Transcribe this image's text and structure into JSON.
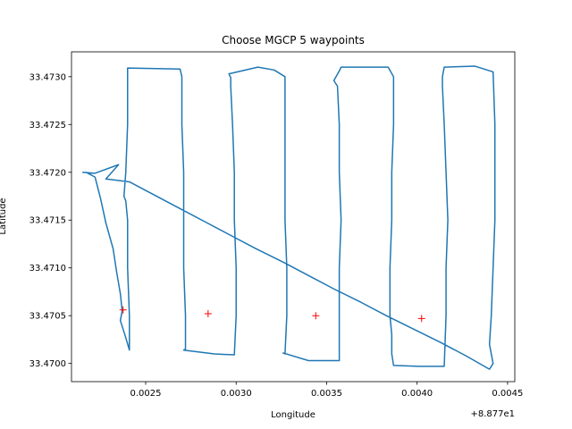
{
  "chart_data": {
    "type": "line",
    "title": "Choose MGCP 5 waypoints",
    "xlabel": "Longitude",
    "ylabel": "Latitude",
    "x_offset_label": "+8.877e1",
    "xlim": [
      0.00209,
      0.00454
    ],
    "ylim": [
      33.46981,
      33.47326
    ],
    "x_ticks": [
      0.0025,
      0.003,
      0.0035,
      0.004,
      0.0045
    ],
    "x_tick_labels": [
      "0.0025",
      "0.0030",
      "0.0035",
      "0.0040",
      "0.0045"
    ],
    "y_ticks": [
      33.47,
      33.4705,
      33.471,
      33.4715,
      33.472,
      33.4725,
      33.473
    ],
    "y_tick_labels": [
      "33.4700",
      "33.4705",
      "33.4710",
      "33.4715",
      "33.4720",
      "33.4725",
      "33.4730"
    ],
    "grid": false,
    "colors": {
      "path": "#1f77b4",
      "waypoints": "#ff0000"
    },
    "series": [
      {
        "kind": "path",
        "x": [
          0.00217,
          0.00222,
          0.00225,
          0.00228,
          0.00232,
          0.00234,
          0.00236,
          0.00237,
          0.00236,
          0.00239,
          0.00241,
          0.00241,
          0.0024,
          0.0024,
          0.00239,
          0.00238,
          0.00239,
          0.0024,
          0.0024,
          0.00269,
          0.0027,
          0.0027,
          0.00271,
          0.00271,
          0.00271,
          0.00272,
          0.00272,
          0.00272,
          0.00271,
          0.00288,
          0.00299,
          0.003,
          0.003,
          0.00299,
          0.00299,
          0.00298,
          0.00297,
          0.00297,
          0.00296,
          0.00312,
          0.00321,
          0.00327,
          0.00327,
          0.00327,
          0.00327,
          0.00328,
          0.00328,
          0.00327,
          0.00326,
          0.0034,
          0.00357,
          0.00357,
          0.00357,
          0.00358,
          0.00357,
          0.00357,
          0.00356,
          0.00354,
          0.00357,
          0.00358,
          0.00384,
          0.00387,
          0.00387,
          0.00386,
          0.00386,
          0.00385,
          0.00385,
          0.00386,
          0.00386,
          0.00387,
          0.00401,
          0.00415,
          0.00416,
          0.00416,
          0.00417,
          0.00416,
          0.00415,
          0.00414,
          0.00414,
          0.00415,
          0.00432,
          0.00442,
          0.00443,
          0.00443,
          0.00443,
          0.00442,
          0.00441,
          0.0044,
          0.00442,
          0.0044,
          0.00427,
          0.00413,
          0.00398,
          0.00383,
          0.00369,
          0.00354,
          0.0034,
          0.00326,
          0.00311,
          0.00297,
          0.00283,
          0.00269,
          0.00255,
          0.00241,
          0.00228,
          0.00235,
          0.00222,
          0.00215
        ],
        "y": [
          33.472,
          33.47195,
          33.47173,
          33.47147,
          33.4712,
          33.47095,
          33.47073,
          33.47055,
          33.47045,
          33.47027,
          33.47014,
          33.4705,
          33.471,
          33.4715,
          33.4717,
          33.47175,
          33.472,
          33.4725,
          33.47309,
          33.47308,
          33.473,
          33.4725,
          33.472,
          33.4715,
          33.471,
          33.4705,
          33.4703,
          33.47015,
          33.47014,
          33.4701,
          33.47009,
          33.4705,
          33.471,
          33.4715,
          33.472,
          33.4725,
          33.4729,
          33.47299,
          33.47303,
          33.4731,
          33.47307,
          33.473,
          33.4725,
          33.472,
          33.4715,
          33.471,
          33.4705,
          33.4701,
          33.47011,
          33.47003,
          33.47003,
          33.4705,
          33.471,
          33.4715,
          33.472,
          33.4725,
          33.4729,
          33.47296,
          33.47306,
          33.4731,
          33.4731,
          33.473,
          33.4725,
          33.472,
          33.4715,
          33.471,
          33.4705,
          33.4703,
          33.4701,
          33.46998,
          33.46997,
          33.46997,
          33.4705,
          33.471,
          33.4715,
          33.472,
          33.4725,
          33.4729,
          33.473,
          33.4731,
          33.47311,
          33.47305,
          33.4725,
          33.472,
          33.4715,
          33.471,
          33.4705,
          33.4702,
          33.47,
          33.46994,
          33.47008,
          33.47022,
          33.47036,
          33.4705,
          33.47064,
          33.47078,
          33.47092,
          33.47106,
          33.4712,
          33.47134,
          33.47148,
          33.47162,
          33.47176,
          33.4719,
          33.47193,
          33.47208,
          33.47199,
          33.472
        ]
      },
      {
        "kind": "waypoints",
        "marker": "+",
        "x": [
          0.002375,
          0.002845,
          0.00344,
          0.004025
        ],
        "y": [
          33.47056,
          33.47052,
          33.4705,
          33.47047
        ]
      }
    ]
  }
}
